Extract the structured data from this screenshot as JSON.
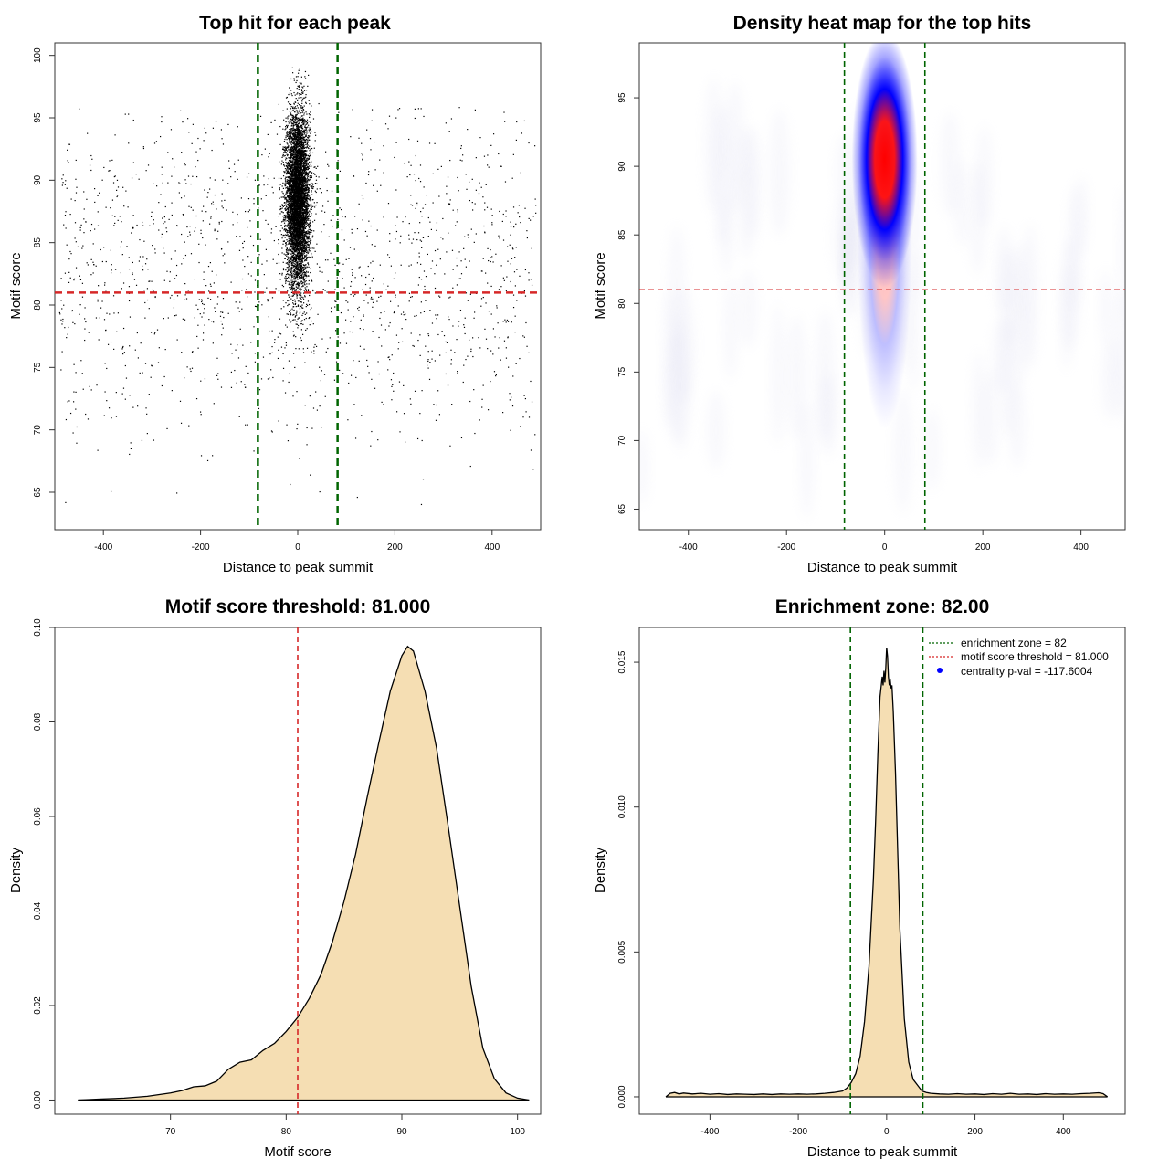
{
  "chart_data": [
    {
      "type": "scatter",
      "title": "Top hit for each peak",
      "xlabel": "Distance to peak summit",
      "ylabel": "Motif score",
      "xlim": [
        -500,
        500
      ],
      "ylim": [
        62,
        101
      ],
      "xticks": [
        -400,
        -200,
        0,
        200,
        400
      ],
      "yticks": [
        65,
        70,
        75,
        80,
        85,
        90,
        95,
        100
      ],
      "central_cluster": {
        "x_center": 0,
        "x_spread": 12,
        "y_center": 88.5,
        "y_spread": 3.5,
        "y_range": [
          75,
          99
        ]
      },
      "background_points": {
        "x_range": [
          -490,
          490
        ],
        "y_range": [
          64,
          96
        ],
        "y_center": 83
      },
      "enrichment_zone": [
        -82,
        82
      ],
      "threshold": 81.0,
      "colors": {
        "points": "#000000",
        "zone": "#006400",
        "threshold": "#d62728"
      }
    },
    {
      "type": "heatmap",
      "title": "Density heat map for the top hits",
      "xlabel": "Distance to peak summit",
      "ylabel": "Motif score",
      "xlim": [
        -500,
        490
      ],
      "ylim": [
        63.5,
        99
      ],
      "xticks": [
        -400,
        -200,
        0,
        200,
        400
      ],
      "yticks": [
        65,
        70,
        75,
        80,
        85,
        90,
        95
      ],
      "peak": {
        "x": 0,
        "y": 90.5
      },
      "enrichment_zone": [
        -82,
        82
      ],
      "threshold": 81.0,
      "colors": {
        "low": "#ffffff",
        "mid": "#0000ff",
        "high": "#ff0000",
        "zone": "#006400",
        "threshold": "#d62728"
      }
    },
    {
      "type": "area",
      "title": "Motif score threshold: 81.000",
      "xlabel": "Motif score",
      "ylabel": "Density",
      "xlim": [
        60,
        102
      ],
      "ylim": [
        -0.003,
        0.1
      ],
      "xticks": [
        70,
        80,
        90,
        100
      ],
      "yticks": [
        0.0,
        0.02,
        0.04,
        0.06,
        0.08,
        0.1
      ],
      "x": [
        62,
        64,
        66,
        68,
        70,
        71,
        72,
        73,
        74,
        75,
        76,
        77,
        78,
        79,
        80,
        81,
        82,
        83,
        84,
        85,
        86,
        87,
        88,
        89,
        90,
        90.5,
        91,
        92,
        93,
        94,
        95,
        96,
        97,
        98,
        99,
        100,
        101
      ],
      "y": [
        0.0,
        0.0002,
        0.0004,
        0.0008,
        0.0015,
        0.002,
        0.0028,
        0.003,
        0.004,
        0.0065,
        0.008,
        0.0085,
        0.0105,
        0.012,
        0.0145,
        0.0175,
        0.0215,
        0.0265,
        0.0335,
        0.042,
        0.052,
        0.064,
        0.0755,
        0.0865,
        0.094,
        0.096,
        0.095,
        0.0865,
        0.0745,
        0.058,
        0.041,
        0.024,
        0.011,
        0.0045,
        0.0015,
        0.0004,
        0.0
      ],
      "threshold": 81.0,
      "colors": {
        "fill": "#f5deb3",
        "line": "#000000",
        "threshold": "#d62728"
      }
    },
    {
      "type": "area",
      "title": "Enrichment zone: 82.00",
      "xlabel": "Distance to peak summit",
      "ylabel": "Density",
      "xlim": [
        -560,
        540
      ],
      "ylim": [
        -0.0006,
        0.0162
      ],
      "xticks": [
        -400,
        -200,
        0,
        200,
        400
      ],
      "yticks": [
        0.0,
        0.005,
        0.01,
        0.015
      ],
      "ytick_labels": [
        "0.000",
        "0.005",
        "0.010",
        "0.015"
      ],
      "x": [
        -500,
        -490,
        -480,
        -470,
        -460,
        -440,
        -420,
        -400,
        -380,
        -360,
        -340,
        -320,
        -300,
        -280,
        -260,
        -240,
        -220,
        -200,
        -180,
        -160,
        -140,
        -120,
        -100,
        -90,
        -80,
        -70,
        -60,
        -50,
        -40,
        -30,
        -25,
        -20,
        -15,
        -10,
        -8,
        -6,
        -4,
        -2,
        0,
        2,
        4,
        6,
        8,
        10,
        12,
        15,
        20,
        25,
        30,
        40,
        50,
        60,
        70,
        80,
        90,
        100,
        120,
        140,
        160,
        180,
        200,
        220,
        240,
        260,
        280,
        300,
        320,
        340,
        360,
        380,
        400,
        420,
        440,
        460,
        480,
        490,
        500
      ],
      "y": [
        0.0,
        0.00012,
        0.00015,
        0.0001,
        0.00013,
        0.0001,
        0.00012,
        9e-05,
        0.00011,
        8e-05,
        0.0001,
        9e-05,
        8e-05,
        0.0001,
        8e-05,
        0.0001,
        9e-05,
        0.0001,
        9e-05,
        0.0001,
        0.00012,
        0.00015,
        0.0002,
        0.0003,
        0.0005,
        0.0008,
        0.0014,
        0.0026,
        0.0045,
        0.0075,
        0.0095,
        0.0118,
        0.0138,
        0.0145,
        0.0142,
        0.0147,
        0.0143,
        0.0148,
        0.0155,
        0.0152,
        0.0145,
        0.0142,
        0.0144,
        0.0141,
        0.0142,
        0.0133,
        0.0112,
        0.0085,
        0.0058,
        0.0027,
        0.0012,
        0.0006,
        0.0004,
        0.0002,
        0.00015,
        0.00012,
        0.0001,
        9e-05,
        0.00011,
        9e-05,
        0.0001,
        8e-05,
        0.00011,
        9e-05,
        0.00012,
        9e-05,
        0.0001,
        8e-05,
        0.00011,
        9e-05,
        0.0001,
        9e-05,
        0.00011,
        0.00012,
        0.00014,
        0.00011,
        0.0
      ],
      "enrichment_zone": [
        -82,
        82
      ],
      "legend_position": "top-right",
      "legend": [
        {
          "label": "enrichment zone = 82",
          "style": "dotted-line",
          "color": "#006400"
        },
        {
          "label": "motif score threshold = 81.000",
          "style": "dotted-line",
          "color": "#d62728"
        },
        {
          "label": "centrality p-val = -117.6004",
          "style": "dot",
          "color": "#0000ff"
        }
      ],
      "colors": {
        "fill": "#f5deb3",
        "line": "#000000",
        "zone": "#006400"
      }
    }
  ]
}
